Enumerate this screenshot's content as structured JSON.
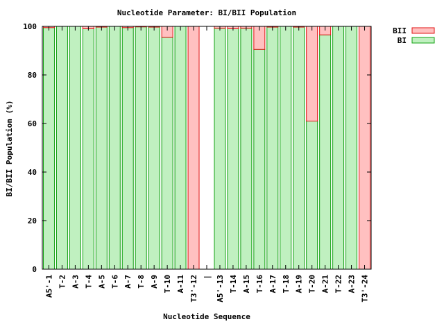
{
  "chart_data": {
    "type": "bar",
    "stacked": true,
    "title": "Nucleotide Parameter: BI/BII Population",
    "xlabel": "Nucleotide Sequence",
    "ylabel": "BI/BII Population (%)",
    "ylim": [
      0,
      100
    ],
    "yticks": [
      0,
      20,
      40,
      60,
      80,
      100
    ],
    "grid": false,
    "legend_position": "top-right",
    "categories": [
      "A5'-1",
      "T-2",
      "A-3",
      "T-4",
      "A-5",
      "T-6",
      "A-7",
      "T-8",
      "A-9",
      "T-10",
      "A-11",
      "T3'-12",
      "|",
      "A5'-13",
      "T-14",
      "A-15",
      "T-16",
      "A-17",
      "T-18",
      "A-19",
      "T-20",
      "A-21",
      "T-22",
      "A-23",
      "T3'-24"
    ],
    "series": [
      {
        "name": "BII",
        "color_fill": "#ffc0c0",
        "color_edge": "#e01010",
        "values": [
          0.5,
          0,
          0,
          1,
          0.3,
          0,
          0.5,
          0.2,
          0.3,
          4.5,
          0,
          100,
          0,
          0.8,
          1,
          0.8,
          9.5,
          0.3,
          0,
          0.3,
          39,
          3.5,
          0,
          0,
          100
        ]
      },
      {
        "name": "BI",
        "color_fill": "#c0f0c0",
        "color_edge": "#10a010",
        "values": [
          99.5,
          100,
          100,
          99,
          99.7,
          100,
          99.5,
          99.8,
          99.7,
          95.5,
          100,
          0,
          0,
          99.2,
          99,
          99.2,
          90.5,
          99.7,
          100,
          99.7,
          61,
          96.5,
          100,
          100,
          0
        ]
      }
    ]
  }
}
